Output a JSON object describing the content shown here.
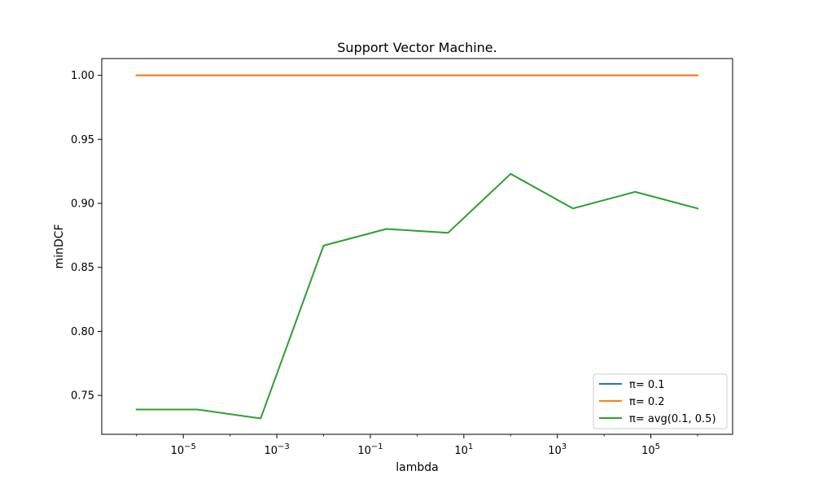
{
  "chart_data": {
    "type": "line",
    "title": "Support Vector Machine.",
    "xlabel": "lambda",
    "ylabel": "minDCF",
    "x_scale": "log",
    "x": [
      1e-06,
      2e-05,
      0.00045,
      0.01,
      0.22,
      4.6,
      100,
      2150,
      46000,
      1000000
    ],
    "xlim": [
      1.8e-07,
      5600000.0
    ],
    "ylim": [
      0.7196,
      1.0131
    ],
    "x_ticks": [
      {
        "value": 1e-05,
        "base": "10",
        "exp": "−5"
      },
      {
        "value": 0.001,
        "base": "10",
        "exp": "−3"
      },
      {
        "value": 0.1,
        "base": "10",
        "exp": "−1"
      },
      {
        "value": 10,
        "base": "10",
        "exp": "1"
      },
      {
        "value": 1000,
        "base": "10",
        "exp": "3"
      },
      {
        "value": 100000,
        "base": "10",
        "exp": "5"
      }
    ],
    "y_ticks": [
      {
        "value": 0.75,
        "label": "0.75"
      },
      {
        "value": 0.8,
        "label": "0.80"
      },
      {
        "value": 0.85,
        "label": "0.85"
      },
      {
        "value": 0.9,
        "label": "0.90"
      },
      {
        "value": 0.95,
        "label": "0.95"
      },
      {
        "value": 1.0,
        "label": "1.00"
      }
    ],
    "grid": false,
    "legend_position": "lower-right",
    "series": [
      {
        "name": "π= 0.1",
        "color": "#1f77b4",
        "values": [
          1.0,
          1.0,
          1.0,
          1.0,
          1.0,
          1.0,
          1.0,
          1.0,
          1.0,
          1.0
        ]
      },
      {
        "name": "π= 0.2",
        "color": "#ff7f0e",
        "values": [
          1.0,
          1.0,
          1.0,
          1.0,
          1.0,
          1.0,
          1.0,
          1.0,
          1.0,
          1.0
        ]
      },
      {
        "name": "π= avg(0.1, 0.5)",
        "color": "#2ca02c",
        "values": [
          0.739,
          0.739,
          0.732,
          0.867,
          0.88,
          0.877,
          0.923,
          0.896,
          0.909,
          0.896
        ]
      }
    ]
  }
}
